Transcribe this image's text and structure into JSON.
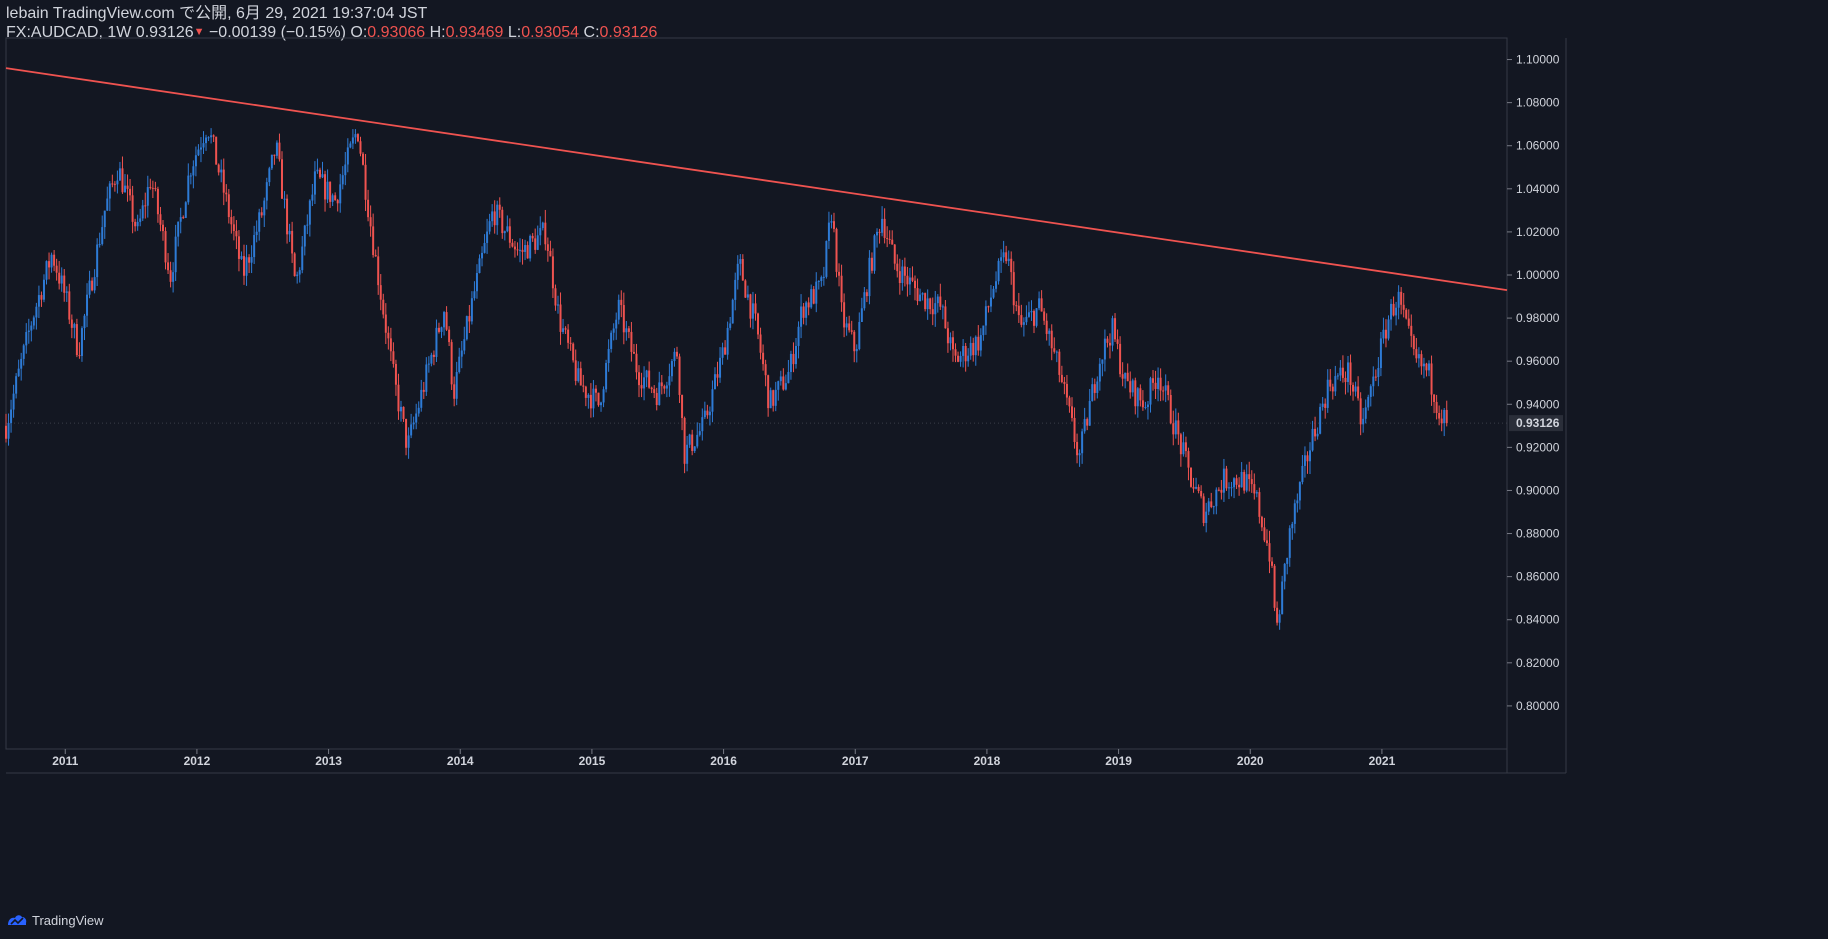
{
  "header": {
    "line1": "lebain TradingView.com で公開, 6月 29, 2021 19:37:04 JST",
    "symbol_prefix": "FX:AUDCAD, 1W 0.93126",
    "change": " −0.00139 (−0.15%)",
    "o_label": " O:",
    "o_value": "0.93066",
    "h_label": " H:",
    "h_value": "0.93469",
    "l_label": " L:",
    "l_value": "0.93054",
    "c_label": " C:",
    "c_value": "0.93126"
  },
  "footer": {
    "brand": "TradingView",
    "logo_icon": "tradingview-logo-icon"
  },
  "colors": {
    "background": "#131722",
    "up": "#2e7bd6",
    "down": "#ef5350",
    "trendline": "#ef5350",
    "grid": "#2a2e39",
    "text": "#d1d4dc"
  },
  "chart_data": {
    "type": "candlestick",
    "symbol": "FX:AUDCAD",
    "interval": "1W",
    "current_price": "0.93126",
    "x_ticks": [
      "2011",
      "2012",
      "2013",
      "2014",
      "2015",
      "2016",
      "2017",
      "2018",
      "2019",
      "2020",
      "2021"
    ],
    "y_ticks": [
      "1.10000",
      "1.08000",
      "1.06000",
      "1.04000",
      "1.02000",
      "1.00000",
      "0.98000",
      "0.96000",
      "0.94000",
      "0.92000",
      "0.90000",
      "0.88000",
      "0.86000",
      "0.84000",
      "0.82000",
      "0.80000"
    ],
    "ylim": [
      0.78,
      1.11
    ],
    "xlim": [
      2010.55,
      2021.95
    ],
    "anchors": [
      [
        2010.55,
        0.93
      ],
      [
        2010.75,
        0.98
      ],
      [
        2010.9,
        1.01
      ],
      [
        2011.0,
        0.99
      ],
      [
        2011.1,
        0.965
      ],
      [
        2011.3,
        1.03
      ],
      [
        2011.4,
        1.05
      ],
      [
        2011.55,
        1.02
      ],
      [
        2011.65,
        1.045
      ],
      [
        2011.8,
        1.0
      ],
      [
        2011.95,
        1.05
      ],
      [
        2012.08,
        1.07
      ],
      [
        2012.2,
        1.04
      ],
      [
        2012.35,
        1.0
      ],
      [
        2012.5,
        1.03
      ],
      [
        2012.6,
        1.06
      ],
      [
        2012.75,
        0.995
      ],
      [
        2012.9,
        1.045
      ],
      [
        2013.05,
        1.035
      ],
      [
        2013.22,
        1.068
      ],
      [
        2013.35,
        1.01
      ],
      [
        2013.5,
        0.95
      ],
      [
        2013.6,
        0.92
      ],
      [
        2013.75,
        0.955
      ],
      [
        2013.88,
        0.985
      ],
      [
        2013.95,
        0.945
      ],
      [
        2014.1,
        0.99
      ],
      [
        2014.25,
        1.03
      ],
      [
        2014.45,
        1.01
      ],
      [
        2014.65,
        1.02
      ],
      [
        2014.75,
        0.98
      ],
      [
        2014.9,
        0.95
      ],
      [
        2015.05,
        0.94
      ],
      [
        2015.2,
        0.985
      ],
      [
        2015.35,
        0.955
      ],
      [
        2015.5,
        0.945
      ],
      [
        2015.65,
        0.965
      ],
      [
        2015.7,
        0.917
      ],
      [
        2015.85,
        0.93
      ],
      [
        2016.0,
        0.965
      ],
      [
        2016.12,
        1.005
      ],
      [
        2016.25,
        0.975
      ],
      [
        2016.35,
        0.94
      ],
      [
        2016.5,
        0.955
      ],
      [
        2016.6,
        0.985
      ],
      [
        2016.75,
        0.995
      ],
      [
        2016.82,
        1.03
      ],
      [
        2016.9,
        0.98
      ],
      [
        2017.0,
        0.965
      ],
      [
        2017.1,
        1.0
      ],
      [
        2017.2,
        1.028
      ],
      [
        2017.3,
        1.005
      ],
      [
        2017.5,
        0.99
      ],
      [
        2017.65,
        0.985
      ],
      [
        2017.75,
        0.96
      ],
      [
        2017.95,
        0.97
      ],
      [
        2018.05,
        0.995
      ],
      [
        2018.15,
        1.01
      ],
      [
        2018.25,
        0.975
      ],
      [
        2018.4,
        0.985
      ],
      [
        2018.55,
        0.955
      ],
      [
        2018.7,
        0.915
      ],
      [
        2018.85,
        0.96
      ],
      [
        2018.95,
        0.975
      ],
      [
        2019.05,
        0.95
      ],
      [
        2019.2,
        0.94
      ],
      [
        2019.3,
        0.955
      ],
      [
        2019.45,
        0.925
      ],
      [
        2019.55,
        0.905
      ],
      [
        2019.65,
        0.89
      ],
      [
        2019.8,
        0.905
      ],
      [
        2019.95,
        0.905
      ],
      [
        2020.05,
        0.895
      ],
      [
        2020.15,
        0.87
      ],
      [
        2020.2,
        0.835
      ],
      [
        2020.3,
        0.88
      ],
      [
        2020.45,
        0.92
      ],
      [
        2020.6,
        0.95
      ],
      [
        2020.75,
        0.955
      ],
      [
        2020.85,
        0.93
      ],
      [
        2020.95,
        0.955
      ],
      [
        2021.05,
        0.98
      ],
      [
        2021.12,
        0.99
      ],
      [
        2021.25,
        0.96
      ],
      [
        2021.35,
        0.955
      ],
      [
        2021.45,
        0.935
      ],
      [
        2021.5,
        0.931
      ]
    ],
    "trendline": [
      [
        2010.55,
        1.096
      ],
      [
        2021.95,
        0.993
      ]
    ]
  }
}
